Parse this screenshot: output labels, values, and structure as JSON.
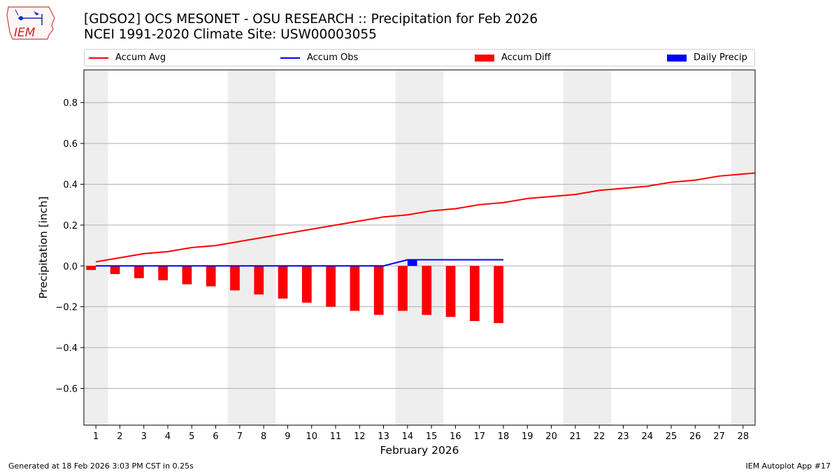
{
  "header": {
    "title_line1": "[GDSO2] OCS MESONET - OSU RESEARCH :: Precipitation for Feb 2026",
    "title_line2": "NCEI 1991-2020 Climate Site: USW00003055",
    "logo_text": "IEM"
  },
  "legend": {
    "accum_avg": "Accum Avg",
    "accum_obs": "Accum Obs",
    "accum_diff": "Accum Diff",
    "daily_precip": "Daily Precip"
  },
  "footer": {
    "generated": "Generated at 18 Feb 2026 3:03 PM CST in 0.25s",
    "app": "IEM Autoplot App #17"
  },
  "colors": {
    "avg": "#ff0000",
    "obs": "#0000ff",
    "diff": "#ff0000",
    "daily": "#0000ff",
    "weekend": "#eeeeee",
    "grid": "#b0b0b0"
  },
  "chart_data": {
    "type": "bar",
    "title": "[GDSO2] OCS MESONET - OSU RESEARCH :: Precipitation for Feb 2026",
    "xlabel": "February 2026",
    "ylabel": "Precipitation [inch]",
    "xlim": [
      0.5,
      28.5
    ],
    "ylim": [
      -0.78,
      0.96
    ],
    "yticks": [
      -0.6,
      -0.4,
      -0.2,
      0.0,
      0.2,
      0.4,
      0.6,
      0.8
    ],
    "ytick_labels": [
      "−0.6",
      "−0.4",
      "−0.2",
      "0.0",
      "0.2",
      "0.4",
      "0.6",
      "0.8"
    ],
    "days": [
      1,
      2,
      3,
      4,
      5,
      6,
      7,
      8,
      9,
      10,
      11,
      12,
      13,
      14,
      15,
      16,
      17,
      18,
      19,
      20,
      21,
      22,
      23,
      24,
      25,
      26,
      27,
      28
    ],
    "weekend_spans": [
      [
        0.5,
        1.5
      ],
      [
        6.5,
        8.5
      ],
      [
        13.5,
        15.5
      ],
      [
        20.5,
        22.5
      ],
      [
        27.5,
        28.5
      ]
    ],
    "grid": true,
    "legend_position": "top",
    "series": [
      {
        "name": "Accum Avg",
        "kind": "line",
        "x": [
          1,
          2,
          3,
          4,
          5,
          6,
          7,
          8,
          9,
          10,
          11,
          12,
          13,
          14,
          15,
          16,
          17,
          18,
          19,
          20,
          21,
          22,
          23,
          24,
          25,
          26,
          27,
          28,
          28.5
        ],
        "values": [
          0.02,
          0.04,
          0.06,
          0.07,
          0.09,
          0.1,
          0.12,
          0.14,
          0.16,
          0.18,
          0.2,
          0.22,
          0.24,
          0.25,
          0.27,
          0.28,
          0.3,
          0.31,
          0.33,
          0.34,
          0.35,
          0.37,
          0.38,
          0.39,
          0.41,
          0.42,
          0.44,
          0.45,
          0.455
        ]
      },
      {
        "name": "Accum Obs",
        "kind": "line",
        "x": [
          1,
          2,
          3,
          4,
          5,
          6,
          7,
          8,
          9,
          10,
          11,
          12,
          13,
          14,
          15,
          16,
          17,
          18
        ],
        "values": [
          0,
          0,
          0,
          0,
          0,
          0,
          0,
          0,
          0,
          0,
          0,
          0,
          0,
          0.03,
          0.03,
          0.03,
          0.03,
          0.03
        ]
      },
      {
        "name": "Accum Diff",
        "kind": "bar",
        "x": [
          1,
          2,
          3,
          4,
          5,
          6,
          7,
          8,
          9,
          10,
          11,
          12,
          13,
          14,
          15,
          16,
          17,
          18
        ],
        "values": [
          -0.02,
          -0.04,
          -0.06,
          -0.07,
          -0.09,
          -0.1,
          -0.12,
          -0.14,
          -0.16,
          -0.18,
          -0.2,
          -0.22,
          -0.24,
          -0.22,
          -0.24,
          -0.25,
          -0.27,
          -0.28
        ]
      },
      {
        "name": "Daily Precip",
        "kind": "bar",
        "x": [
          14
        ],
        "values": [
          0.03
        ]
      }
    ]
  }
}
